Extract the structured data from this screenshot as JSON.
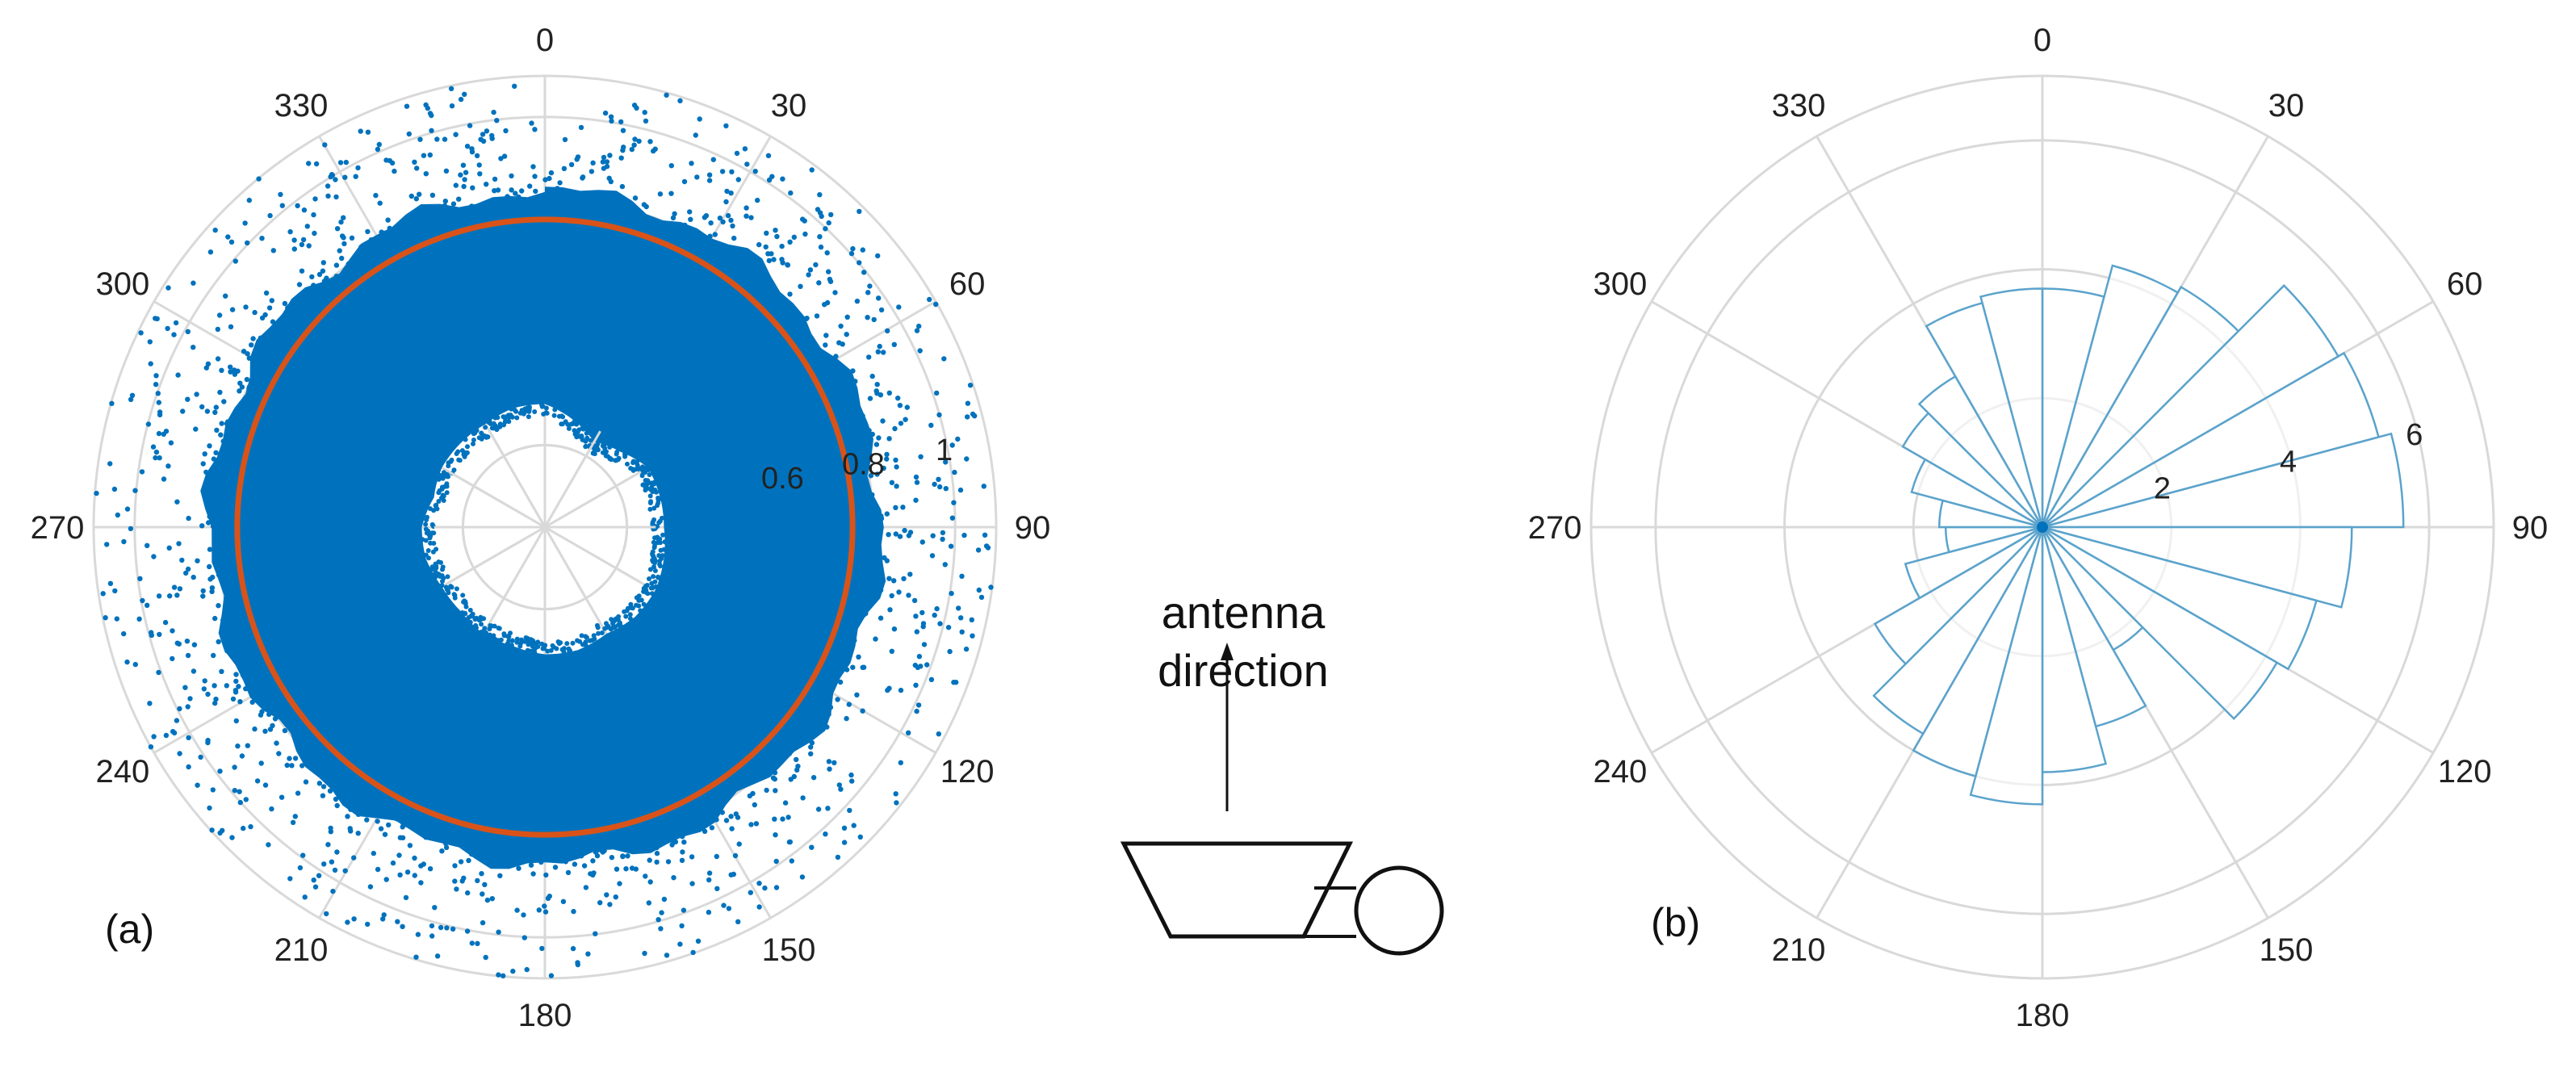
{
  "chart_data": [
    {
      "type": "scatter",
      "coordinate_system": "polar",
      "theta_ticks": [
        "0",
        "30",
        "60",
        "90",
        "120",
        "150",
        "180",
        "210",
        "240",
        "270",
        "300",
        "330"
      ],
      "r_ticks": [
        {
          "value": 0.2,
          "label": ""
        },
        {
          "value": 0.4,
          "label": ""
        },
        {
          "value": 0.6,
          "label": "0.6"
        },
        {
          "value": 0.8,
          "label": "0.8"
        },
        {
          "value": 1.0,
          "label": "1"
        }
      ],
      "rlim": [
        0,
        1.1
      ],
      "grid": true,
      "point_color": "#0072BD",
      "point_cloud": {
        "inner_hole_radius": 0.3,
        "dense_outer_radius": 0.82,
        "outlier_max_radius": 1.1,
        "angles_deg": [
          0,
          15,
          30,
          45,
          60,
          75,
          90,
          105,
          120,
          135,
          150,
          165,
          180,
          195,
          210,
          225,
          240,
          255,
          270,
          285,
          300,
          315,
          330,
          345
        ],
        "hole_radius_by_angle": [
          0.3,
          0.27,
          0.24,
          0.26,
          0.29,
          0.29,
          0.29,
          0.3,
          0.31,
          0.31,
          0.3,
          0.31,
          0.31,
          0.3,
          0.3,
          0.29,
          0.29,
          0.3,
          0.3,
          0.28,
          0.29,
          0.29,
          0.29,
          0.3
        ]
      },
      "reference_circle": {
        "r": 0.75,
        "color": "#D95319"
      },
      "annotation": "(a)"
    },
    {
      "type": "polar_histogram",
      "theta_ticks": [
        "0",
        "30",
        "60",
        "90",
        "120",
        "150",
        "180",
        "210",
        "240",
        "270",
        "300",
        "330"
      ],
      "r_ticks": [
        {
          "value": 2,
          "label": "2"
        },
        {
          "value": 4,
          "label": "4"
        },
        {
          "value": 6,
          "label": "6"
        }
      ],
      "rlim": [
        0,
        7
      ],
      "grid": true,
      "bin_width_deg": 15,
      "bar_color": "#5BA3CC",
      "bins": [
        {
          "start": 0,
          "end": 15,
          "value": 3.7
        },
        {
          "start": 15,
          "end": 30,
          "value": 4.2
        },
        {
          "start": 30,
          "end": 45,
          "value": 4.3
        },
        {
          "start": 45,
          "end": 60,
          "value": 5.3
        },
        {
          "start": 60,
          "end": 75,
          "value": 5.4
        },
        {
          "start": 75,
          "end": 90,
          "value": 5.6
        },
        {
          "start": 90,
          "end": 105,
          "value": 4.8
        },
        {
          "start": 105,
          "end": 120,
          "value": 4.4
        },
        {
          "start": 120,
          "end": 135,
          "value": 4.2
        },
        {
          "start": 135,
          "end": 150,
          "value": 2.2
        },
        {
          "start": 150,
          "end": 165,
          "value": 3.2
        },
        {
          "start": 165,
          "end": 180,
          "value": 3.8
        },
        {
          "start": 180,
          "end": 195,
          "value": 4.3
        },
        {
          "start": 195,
          "end": 210,
          "value": 4.0
        },
        {
          "start": 210,
          "end": 225,
          "value": 3.7
        },
        {
          "start": 225,
          "end": 240,
          "value": 3.0
        },
        {
          "start": 240,
          "end": 255,
          "value": 2.2
        },
        {
          "start": 255,
          "end": 270,
          "value": 1.5
        },
        {
          "start": 270,
          "end": 285,
          "value": 1.6
        },
        {
          "start": 285,
          "end": 300,
          "value": 2.1
        },
        {
          "start": 300,
          "end": 315,
          "value": 2.5
        },
        {
          "start": 315,
          "end": 330,
          "value": 2.7
        },
        {
          "start": 330,
          "end": 345,
          "value": 3.6
        },
        {
          "start": 345,
          "end": 360,
          "value": 3.7
        }
      ],
      "annotation": "(b)"
    }
  ],
  "diagram": {
    "label_line1": "antenna",
    "label_line2": "direction"
  }
}
